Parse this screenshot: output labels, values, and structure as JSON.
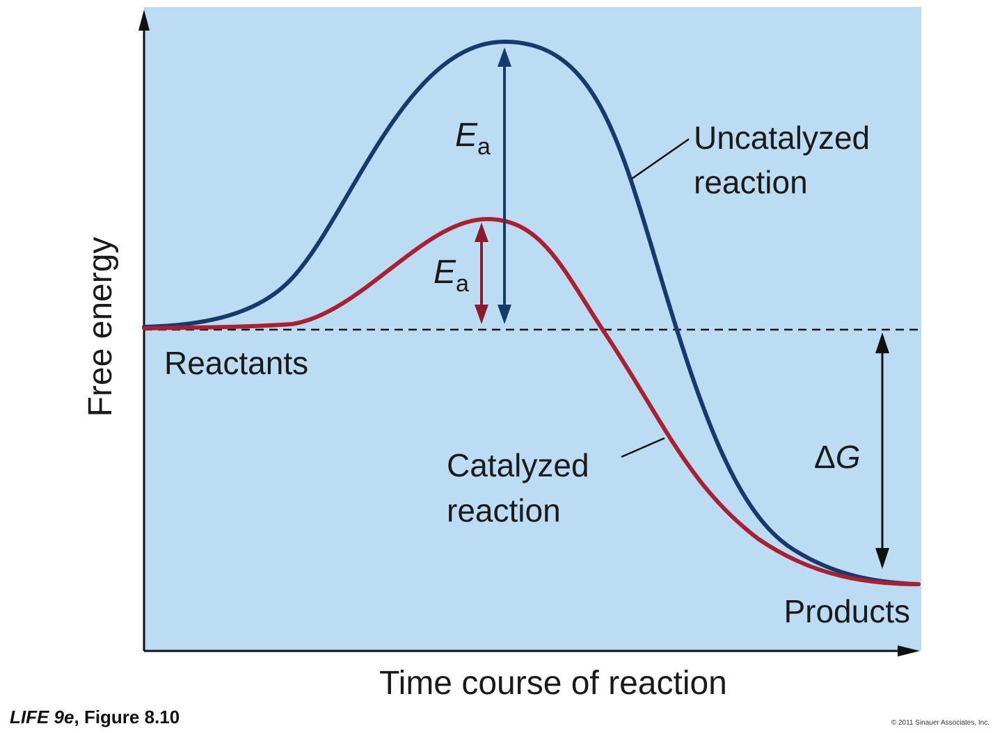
{
  "axes": {
    "y_label": "Free energy",
    "x_label": "Time course of reaction"
  },
  "labels": {
    "reactants": "Reactants",
    "products": "Products",
    "uncatalyzed_line1": "Uncatalyzed",
    "uncatalyzed_line2": "reaction",
    "catalyzed_line1": "Catalyzed",
    "catalyzed_line2": "reaction",
    "ea_symbol": "E",
    "ea_subscript": "a",
    "delta_g_prefix": "Δ",
    "delta_g_symbol": "G"
  },
  "caption": {
    "book": "LIFE 9e",
    "separator": ", ",
    "figure": "Figure 8.10"
  },
  "copyright": "© 2011 Sinauer Associates, Inc.",
  "colors": {
    "background": "#bcdcf3",
    "uncatalyzed_curve": "#173a6b",
    "catalyzed_curve": "#a82032",
    "catalyzed_arrow": "#8b1a2c",
    "axis": "#111111"
  }
}
